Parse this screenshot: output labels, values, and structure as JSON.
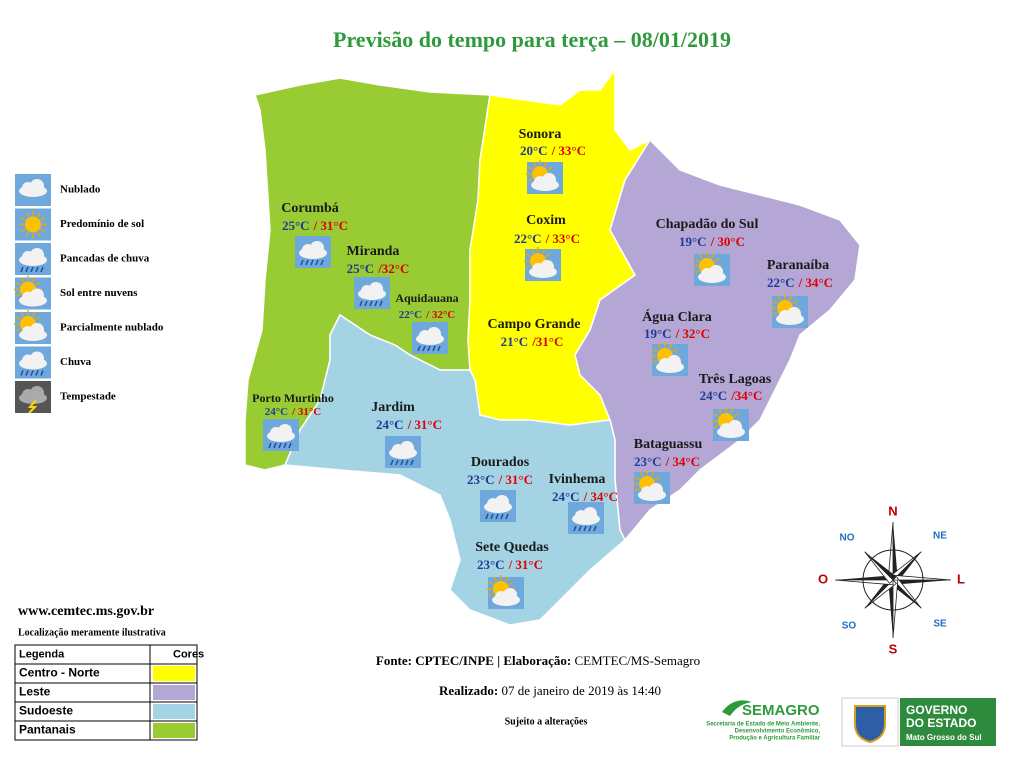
{
  "title": "Previsão do tempo para terça – 08/01/2019",
  "icon_legend": [
    "Nublado",
    "Predomínio de sol",
    "Pancadas de chuva",
    "Sol entre nuvens",
    "Parcialmente nublado",
    "Chuva",
    "Tempestade"
  ],
  "cities": [
    {
      "name": "Corumbá",
      "min": "25°C",
      "max": "/ 31°C"
    },
    {
      "name": "Miranda",
      "min": "25°C",
      "max": "/32°C"
    },
    {
      "name": "Aquidauana",
      "min": "22°C",
      "max": "/ 32°C"
    },
    {
      "name": "Porto Murtinho",
      "min": "24°C",
      "max": "/ 31°C"
    },
    {
      "name": "Sonora",
      "min": "20°C",
      "max": "/ 33°C"
    },
    {
      "name": "Coxim",
      "min": "22°C",
      "max": "/ 33°C"
    },
    {
      "name": "Campo Grande",
      "min": "21°C",
      "max": "/31°C"
    },
    {
      "name": "Chapadão do Sul",
      "min": "19°C",
      "max": "/ 30°C"
    },
    {
      "name": "Paranaíba",
      "min": "22°C",
      "max": "/ 34°C"
    },
    {
      "name": "Água Clara",
      "min": "19°C",
      "max": "/ 32°C"
    },
    {
      "name": "Três Lagoas",
      "min": "24°C",
      "max": "/34°C"
    },
    {
      "name": "Jardim",
      "min": "24°C",
      "max": "/ 31°C"
    },
    {
      "name": "Dourados",
      "min": "23°C",
      "max": "/ 31°C"
    },
    {
      "name": "Ivinhema",
      "min": "24°C",
      "max": "/ 34°C"
    },
    {
      "name": "Bataguassu",
      "min": "23°C",
      "max": "/ 34°C"
    },
    {
      "name": "Sete Quedas",
      "min": "23°C",
      "max": "/ 31°C"
    }
  ],
  "website": "www.cemtec.ms.gov.br",
  "note": "Localização meramente ilustrativa",
  "region_legend": {
    "headers": [
      "Legenda",
      "Cores"
    ],
    "rows": [
      {
        "label": "Centro - Norte",
        "color": "#ffff00"
      },
      {
        "label": "Leste",
        "color": "#b4a7d6"
      },
      {
        "label": "Sudoeste",
        "color": "#a4d4e4"
      },
      {
        "label": "Pantanais",
        "color": "#99cc33"
      }
    ]
  },
  "footer": {
    "source_label": "Fonte: CPTEC/INPE | Elaboração:",
    "source": "CEMTEC/MS-Semagro",
    "made_label": "Realizado:",
    "made": "07 de janeiro de 2019 às 14:40",
    "disclaimer": "Sujeito a alterações"
  },
  "compass": [
    "N",
    "NE",
    "L",
    "SE",
    "S",
    "SO",
    "O",
    "NO"
  ],
  "logos": {
    "semagro": "SEMAGRO",
    "semagro_sub": [
      "Secretaria de Estado de Meio Ambiente,",
      "Desenvolvimento Econômico,",
      "Produção e Agricultura Familiar"
    ],
    "gov": [
      "GOVERNO",
      "DO ESTADO"
    ],
    "gov_sub": "Mato Grosso do Sul"
  }
}
